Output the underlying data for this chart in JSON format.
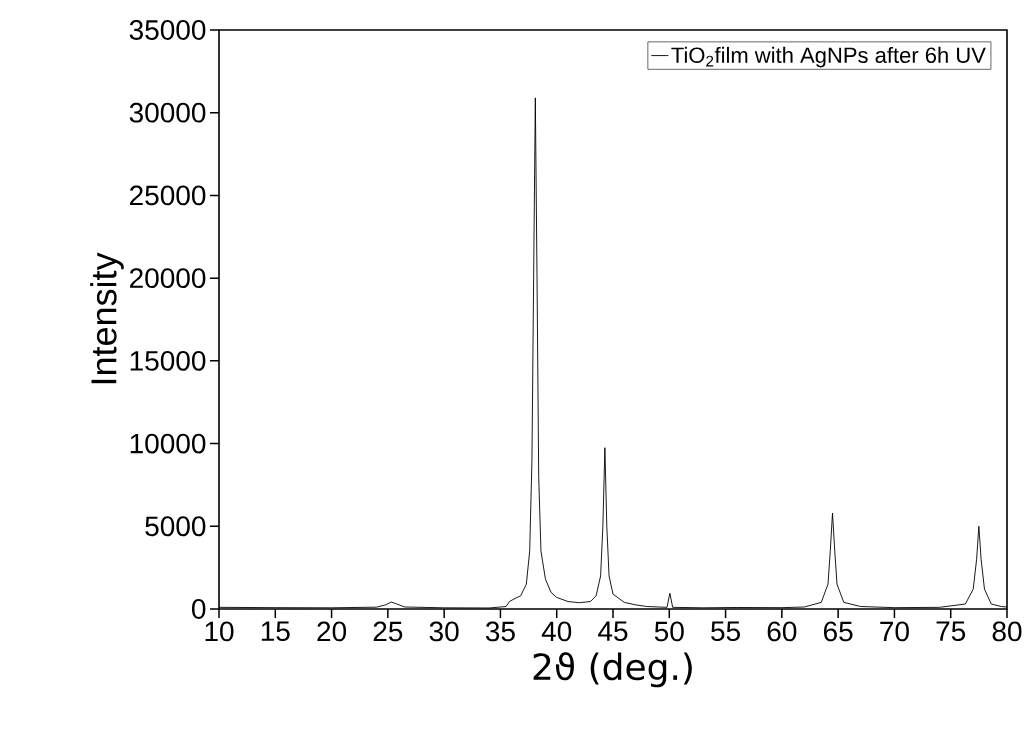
{
  "chart_data": {
    "type": "line",
    "xlabel": "2ϑ (deg.)",
    "ylabel": "Intensity",
    "xlim": [
      10,
      80
    ],
    "ylim": [
      0,
      35000
    ],
    "xticks": [
      10,
      15,
      20,
      25,
      30,
      35,
      40,
      45,
      50,
      55,
      60,
      65,
      70,
      75,
      80
    ],
    "yticks": [
      0,
      5000,
      10000,
      15000,
      20000,
      25000,
      30000,
      35000
    ],
    "legend": "top right",
    "marker": "none",
    "line_style": "solid",
    "series": [
      {
        "name": "TiO$_{2}$film with AgNPs after 6h UV",
        "color": "#000000",
        "x": [
          10,
          15,
          20,
          24,
          24.8,
          25.3,
          25.8,
          26.5,
          30,
          34,
          35.5,
          35.8,
          36.2,
          36.8,
          37.3,
          37.6,
          37.8,
          37.95,
          38.1,
          38.25,
          38.4,
          38.6,
          39,
          39.5,
          40,
          41,
          42,
          43,
          43.5,
          43.9,
          44.1,
          44.28,
          44.45,
          44.65,
          45,
          46,
          47,
          48,
          49.8,
          50.05,
          50.3,
          53,
          56,
          60,
          62,
          63.5,
          64.1,
          64.3,
          64.5,
          64.7,
          64.9,
          65.5,
          67,
          70,
          74,
          76.3,
          77,
          77.3,
          77.5,
          77.7,
          78,
          78.6,
          79.5,
          80
        ],
        "values": [
          100,
          80,
          70,
          110,
          250,
          420,
          300,
          120,
          70,
          60,
          150,
          450,
          600,
          800,
          1500,
          3500,
          9000,
          20000,
          30900,
          20000,
          8000,
          3500,
          1800,
          1000,
          700,
          450,
          380,
          450,
          800,
          2000,
          5000,
          9750,
          5000,
          2000,
          900,
          400,
          250,
          150,
          100,
          950,
          100,
          70,
          90,
          80,
          120,
          400,
          1500,
          3500,
          5800,
          3500,
          1500,
          400,
          150,
          80,
          100,
          300,
          1200,
          3000,
          5000,
          3000,
          1200,
          300,
          150,
          120
        ]
      }
    ]
  }
}
